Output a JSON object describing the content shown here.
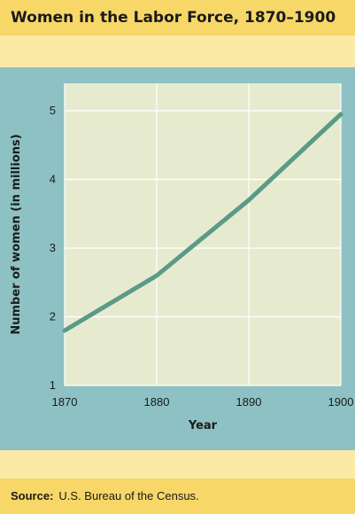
{
  "title": "Women in the Labor Force, 1870–1900",
  "footer": {
    "label": "Source:",
    "text": "U.S. Bureau of the Census."
  },
  "colors": {
    "background": "#fbe9a6",
    "header_band": "#f6d768",
    "panel": "#8ec1c4",
    "plot": "#e6ebcf",
    "line": "#5c9a88"
  },
  "chart_data": {
    "type": "line",
    "title": "Women in the Labor Force, 1870–1900",
    "xlabel": "Year",
    "ylabel": "Number of women (in millions)",
    "x": [
      1870,
      1880,
      1890,
      1900
    ],
    "values": [
      1.8,
      2.6,
      3.7,
      4.95
    ],
    "xlim": [
      1870,
      1900
    ],
    "ylim": [
      1,
      5.4
    ],
    "xticks": [
      "1870",
      "1880",
      "1890",
      "1900"
    ],
    "yticks": [
      "1",
      "2",
      "3",
      "4",
      "5"
    ],
    "grid": true,
    "legend": "none"
  }
}
